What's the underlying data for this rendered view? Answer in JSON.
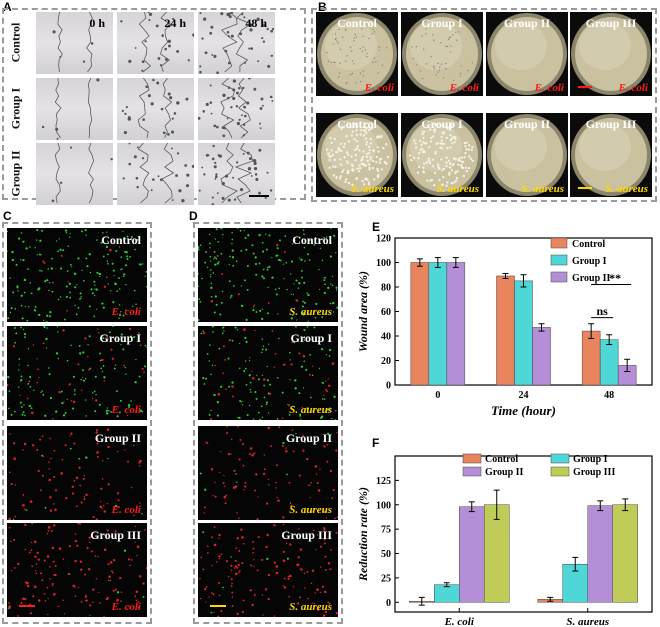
{
  "panels": {
    "A": {
      "label": "A",
      "time_labels": [
        "0 h",
        "24 h",
        "48 h"
      ],
      "row_labels": [
        "Control",
        "Group I",
        "Group II"
      ]
    },
    "B": {
      "label": "B",
      "plate_labels": [
        "Control",
        "Group I",
        "Group II",
        "Group III"
      ],
      "bacteria": [
        "E. coli",
        "S. aureus"
      ]
    },
    "C": {
      "label": "C",
      "image_labels": [
        "Control",
        "Group I",
        "Group II",
        "Group III"
      ],
      "bacterium": "E. coli"
    },
    "D": {
      "label": "D",
      "image_labels": [
        "Control",
        "Group I",
        "Group II",
        "Group III"
      ],
      "bacterium": "S. aureus"
    },
    "E": {
      "label": "E"
    },
    "F": {
      "label": "F"
    }
  },
  "colors": {
    "control": "#e8855f",
    "group1": "#4fd6d6",
    "group2": "#b48ed6",
    "group3": "#bfcc58",
    "ecoli_text": "#ff1a1a",
    "saureus_text": "#ffd800"
  },
  "chart_data": [
    {
      "id": "E",
      "type": "bar",
      "categories": [
        "0",
        "24",
        "48"
      ],
      "series": [
        {
          "name": "Control",
          "values": [
            100,
            89,
            44
          ],
          "errors": [
            3,
            2,
            6
          ]
        },
        {
          "name": "Group I",
          "values": [
            100,
            85,
            37
          ],
          "errors": [
            4,
            5,
            4
          ]
        },
        {
          "name": "Group II",
          "values": [
            100,
            47,
            16
          ],
          "errors": [
            4,
            3,
            5
          ]
        }
      ],
      "xlabel": "Time (hour)",
      "ylabel": "Wound area (%)",
      "ylim": [
        0,
        120
      ],
      "yticks": [
        0,
        20,
        40,
        60,
        80,
        100,
        120
      ],
      "annotations": [
        "**",
        "ns"
      ],
      "legend": "top-right"
    },
    {
      "id": "F",
      "type": "bar",
      "categories": [
        "E. coli",
        "S. aureus"
      ],
      "series": [
        {
          "name": "Control",
          "values": [
            1,
            3
          ],
          "errors": [
            4,
            2
          ]
        },
        {
          "name": "Group I",
          "values": [
            18,
            39
          ],
          "errors": [
            2,
            7
          ]
        },
        {
          "name": "Group II",
          "values": [
            98,
            99
          ],
          "errors": [
            5,
            5
          ]
        },
        {
          "name": "Group III",
          "values": [
            100,
            100
          ],
          "errors": [
            15,
            6
          ]
        }
      ],
      "ylabel": "Reduction rate (%)",
      "ylim": [
        -10,
        150
      ],
      "yticks": [
        0,
        25,
        50,
        75,
        100,
        125
      ],
      "legend": "top"
    }
  ]
}
